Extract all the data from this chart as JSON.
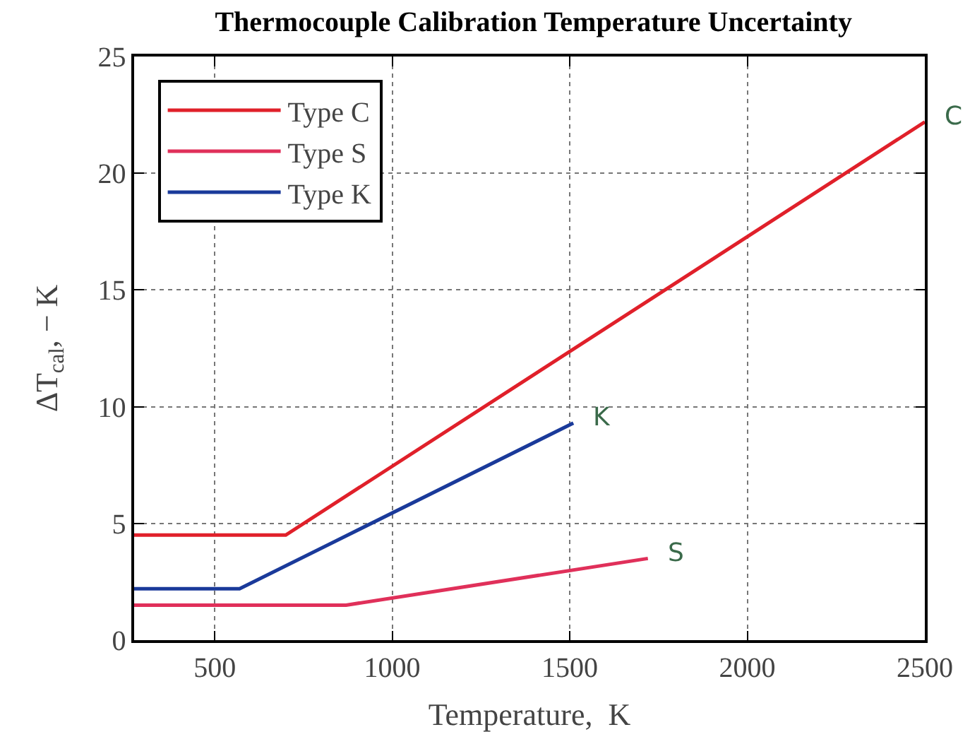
{
  "chart_data": {
    "type": "line",
    "title": "Thermocouple Calibration Temperature Uncertainty",
    "xlabel": "Temperature,  K",
    "ylabel": "ΔT$_{cal}$, − K",
    "series": [
      {
        "name": "Type C",
        "color": "#e0202a",
        "x": [
          273,
          700,
          2500
        ],
        "values": [
          4.5,
          4.5,
          22.2
        ]
      },
      {
        "name": "Type S",
        "color": "#e0305a",
        "x": [
          273,
          870,
          1720
        ],
        "values": [
          1.5,
          1.5,
          3.5
        ]
      },
      {
        "name": "Type K",
        "color": "#1a3a9a",
        "x": [
          273,
          570,
          1510
        ],
        "values": [
          2.2,
          2.2,
          9.3
        ]
      }
    ],
    "xlim": [
      273,
      2500
    ],
    "xticks": [
      500,
      1000,
      1500,
      2000,
      2500
    ],
    "ylim": [
      0,
      25
    ],
    "yticks": [
      0,
      5,
      10,
      15,
      20,
      25
    ],
    "grid": true,
    "legend": "top left",
    "marker": "none",
    "line_style": "solid",
    "annotations": [
      {
        "text": "C",
        "x": 2500,
        "y": 22.2
      },
      {
        "text": "K",
        "x": 1510,
        "y": 9.3
      },
      {
        "text": "S",
        "x": 1720,
        "y": 3.5
      }
    ]
  }
}
